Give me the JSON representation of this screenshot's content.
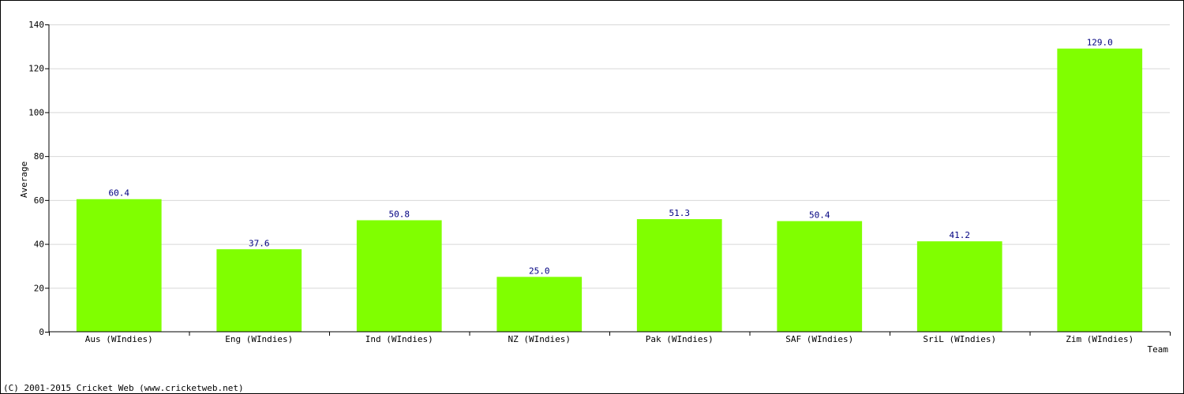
{
  "chart_data": {
    "type": "bar",
    "title": "",
    "xlabel": "Team",
    "ylabel": "Average",
    "ylim": [
      0,
      140
    ],
    "yticks": [
      0,
      20,
      40,
      60,
      80,
      100,
      120,
      140
    ],
    "grid": true,
    "categories": [
      "Aus (WIndies)",
      "Eng (WIndies)",
      "Ind (WIndies)",
      "NZ (WIndies)",
      "Pak (WIndies)",
      "SAF (WIndies)",
      "SriL (WIndies)",
      "Zim (WIndies)"
    ],
    "values": [
      60.4,
      37.6,
      50.8,
      25.0,
      51.3,
      50.4,
      41.2,
      129.0
    ],
    "value_labels": [
      "60.4",
      "37.6",
      "50.8",
      "25.0",
      "51.3",
      "50.4",
      "41.2",
      "129.0"
    ],
    "bar_color": "#80ff00",
    "label_color": "#000080",
    "grid_color": "#d8d8d8"
  },
  "footer": {
    "copyright": "(C) 2001-2015 Cricket Web (www.cricketweb.net)"
  }
}
